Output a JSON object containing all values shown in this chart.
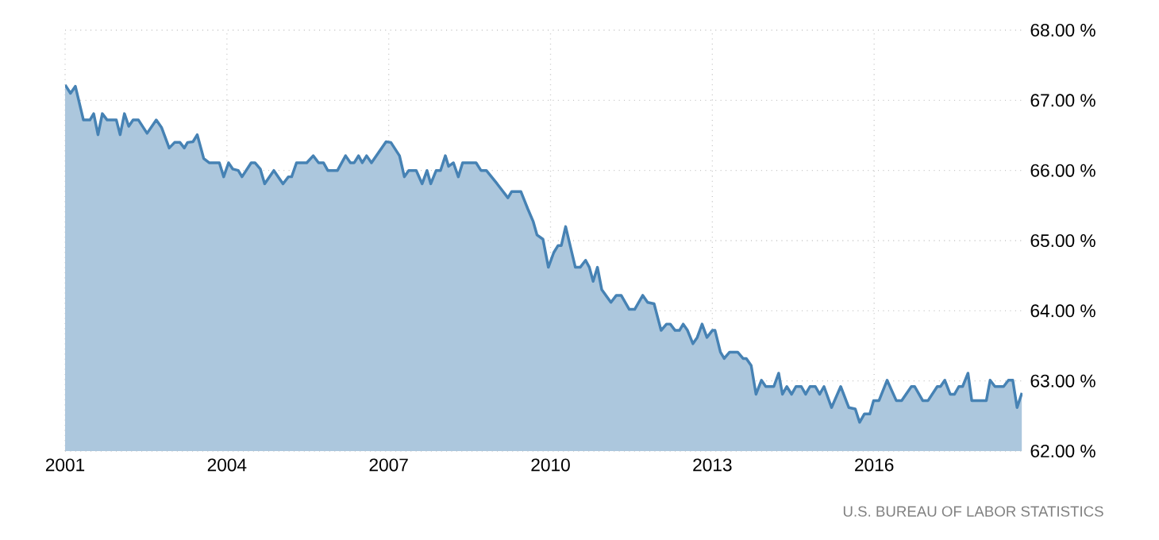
{
  "chart_data": {
    "type": "area",
    "color": "#4682b4",
    "grid": true,
    "marker": "none",
    "line_style": "solid",
    "xlim": [
      2001,
      2018.75
    ],
    "xticks": [
      2001,
      2004,
      2007,
      2010,
      2013,
      2016
    ],
    "ylim": [
      62,
      68
    ],
    "yticks": [
      {
        "value": 62,
        "label": "62.00 %"
      },
      {
        "value": 63,
        "label": "63.00 %"
      },
      {
        "value": 64,
        "label": "64.00 %"
      },
      {
        "value": 65,
        "label": "65.00 %"
      },
      {
        "value": 66,
        "label": "66.00 %"
      },
      {
        "value": 67,
        "label": "67.00 %"
      },
      {
        "value": 68,
        "label": "68.00 %"
      }
    ],
    "x": [
      2001.0,
      2001.1,
      2001.19,
      2001.34,
      2001.46,
      2001.53,
      2001.61,
      2001.69,
      2001.78,
      2001.95,
      2002.02,
      2002.1,
      2002.18,
      2002.26,
      2002.36,
      2002.52,
      2002.69,
      2002.79,
      2002.93,
      2003.03,
      2003.13,
      2003.21,
      2003.27,
      2003.37,
      2003.45,
      2003.57,
      2003.67,
      2003.86,
      2003.94,
      2004.03,
      2004.11,
      2004.21,
      2004.28,
      2004.45,
      2004.52,
      2004.62,
      2004.7,
      2004.87,
      2005.04,
      2005.14,
      2005.2,
      2005.29,
      2005.48,
      2005.6,
      2005.7,
      2005.79,
      2005.87,
      2006.05,
      2006.2,
      2006.29,
      2006.36,
      2006.44,
      2006.51,
      2006.59,
      2006.68,
      2006.95,
      2007.04,
      2007.2,
      2007.29,
      2007.37,
      2007.51,
      2007.62,
      2007.71,
      2007.78,
      2007.88,
      2007.96,
      2008.05,
      2008.11,
      2008.2,
      2008.29,
      2008.37,
      2008.62,
      2008.71,
      2008.81,
      2009.01,
      2009.21,
      2009.28,
      2009.45,
      2009.58,
      2009.68,
      2009.75,
      2009.86,
      2009.96,
      2010.06,
      2010.14,
      2010.2,
      2010.28,
      2010.46,
      2010.55,
      2010.65,
      2010.72,
      2010.79,
      2010.87,
      2010.95,
      2011.12,
      2011.22,
      2011.31,
      2011.46,
      2011.56,
      2011.71,
      2011.8,
      2011.92,
      2012.05,
      2012.15,
      2012.22,
      2012.31,
      2012.39,
      2012.46,
      2012.54,
      2012.64,
      2012.72,
      2012.81,
      2012.9,
      2013.0,
      2013.05,
      2013.15,
      2013.22,
      2013.32,
      2013.47,
      2013.57,
      2013.63,
      2013.72,
      2013.81,
      2013.91,
      2013.99,
      2014.14,
      2014.23,
      2014.3,
      2014.38,
      2014.47,
      2014.55,
      2014.65,
      2014.73,
      2014.81,
      2014.91,
      2014.99,
      2015.07,
      2015.21,
      2015.38,
      2015.53,
      2015.65,
      2015.73,
      2015.82,
      2015.92,
      2015.99,
      2016.09,
      2016.24,
      2016.41,
      2016.51,
      2016.69,
      2016.75,
      2016.9,
      2017.0,
      2017.17,
      2017.23,
      2017.31,
      2017.41,
      2017.49,
      2017.57,
      2017.64,
      2017.74,
      2017.81,
      2018.08,
      2018.15,
      2018.24,
      2018.4,
      2018.49,
      2018.57,
      2018.65,
      2018.74
    ],
    "values": [
      67.22,
      67.1,
      67.2,
      66.72,
      66.72,
      66.81,
      66.51,
      66.81,
      66.72,
      66.72,
      66.51,
      66.81,
      66.63,
      66.72,
      66.72,
      66.53,
      66.72,
      66.61,
      66.32,
      66.4,
      66.4,
      66.32,
      66.4,
      66.41,
      66.51,
      66.17,
      66.11,
      66.11,
      65.91,
      66.11,
      66.02,
      66.0,
      65.91,
      66.11,
      66.11,
      66.02,
      65.81,
      66.0,
      65.81,
      65.91,
      65.91,
      66.11,
      66.11,
      66.21,
      66.11,
      66.11,
      66.0,
      66.0,
      66.21,
      66.11,
      66.11,
      66.21,
      66.11,
      66.21,
      66.11,
      66.41,
      66.4,
      66.21,
      65.91,
      66.0,
      66.0,
      65.81,
      66.0,
      65.81,
      66.0,
      66.0,
      66.21,
      66.06,
      66.11,
      65.91,
      66.11,
      66.11,
      66.0,
      66.0,
      65.81,
      65.61,
      65.7,
      65.7,
      65.45,
      65.27,
      65.08,
      65.02,
      64.62,
      64.83,
      64.93,
      64.93,
      65.2,
      64.62,
      64.62,
      64.72,
      64.62,
      64.42,
      64.62,
      64.3,
      64.12,
      64.22,
      64.22,
      64.02,
      64.02,
      64.22,
      64.12,
      64.1,
      63.72,
      63.81,
      63.81,
      63.72,
      63.72,
      63.81,
      63.72,
      63.53,
      63.62,
      63.81,
      63.62,
      63.72,
      63.72,
      63.41,
      63.32,
      63.41,
      63.41,
      63.32,
      63.32,
      63.22,
      62.81,
      63.01,
      62.92,
      62.92,
      63.11,
      62.81,
      62.92,
      62.81,
      62.92,
      62.92,
      62.81,
      62.92,
      62.92,
      62.81,
      62.92,
      62.62,
      62.92,
      62.62,
      62.6,
      62.41,
      62.53,
      62.53,
      62.72,
      62.72,
      63.01,
      62.72,
      62.72,
      62.92,
      62.92,
      62.72,
      62.72,
      62.92,
      62.92,
      63.01,
      62.81,
      62.81,
      62.92,
      62.92,
      63.11,
      62.72,
      62.72,
      63.01,
      62.92,
      62.92,
      63.01,
      63.01,
      62.62,
      62.83
    ],
    "annotations": [
      "U.S. BUREAU OF LABOR STATISTICS"
    ]
  }
}
